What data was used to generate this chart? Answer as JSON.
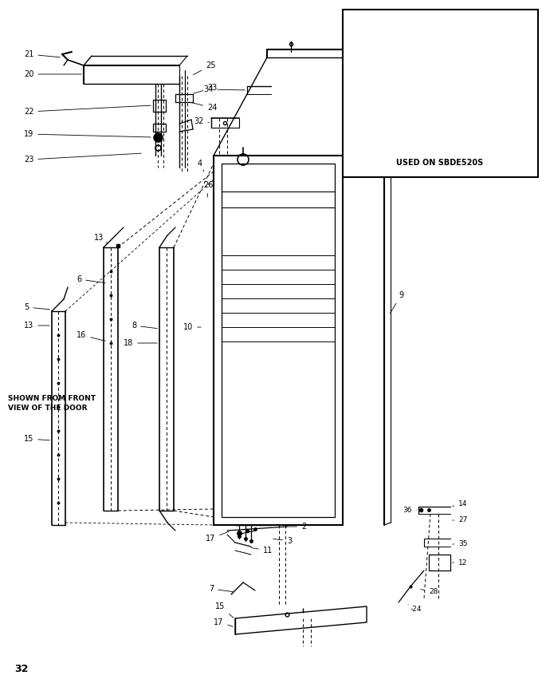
{
  "page_num": "32",
  "bg_color": "#ffffff",
  "fig_width": 6.8,
  "fig_height": 8.51,
  "dpi": 100,
  "inset_label": "USED ON SBDE520S",
  "shown_text": "SHOWN FROM FRONT\nVIEW OF THE DOOR"
}
